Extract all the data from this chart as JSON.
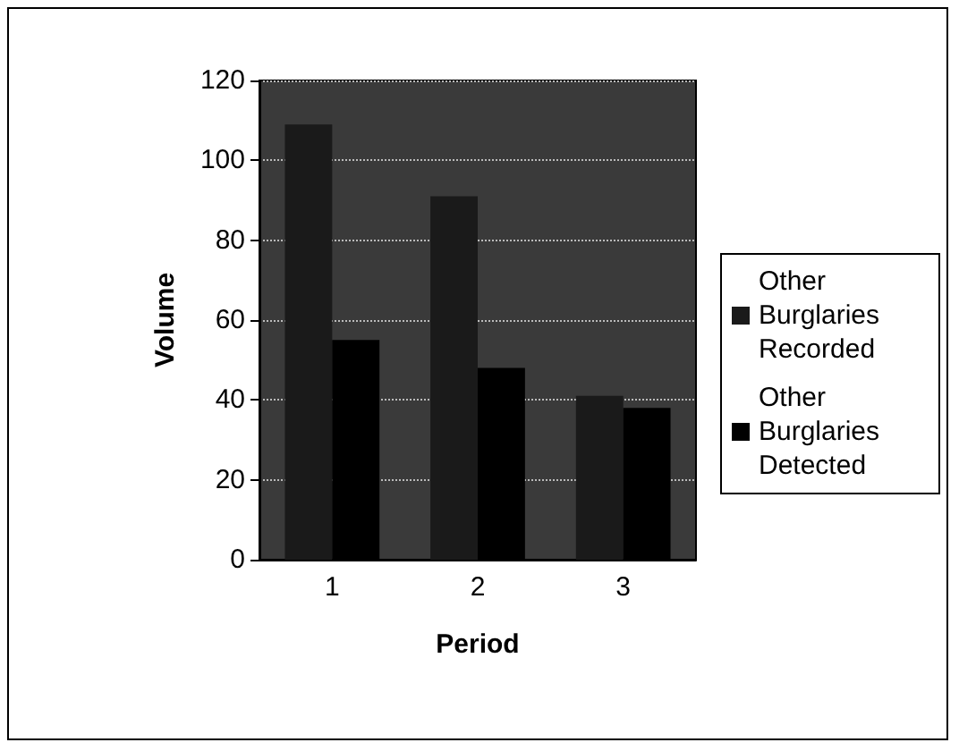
{
  "chart_data": {
    "type": "bar",
    "xlabel": "Period",
    "ylabel": "Volume",
    "categories": [
      "1",
      "2",
      "3"
    ],
    "series": [
      {
        "name": "Other Burglaries Recorded",
        "color": "#1a1a1a",
        "values": [
          109,
          91,
          41
        ]
      },
      {
        "name": "Other Burglaries Detected",
        "color": "#000000",
        "values": [
          55,
          48,
          38
        ]
      }
    ],
    "ylim": [
      0,
      120
    ],
    "yticks": [
      0,
      20,
      40,
      60,
      80,
      100,
      120
    ],
    "grid": "y",
    "legend": "right"
  }
}
